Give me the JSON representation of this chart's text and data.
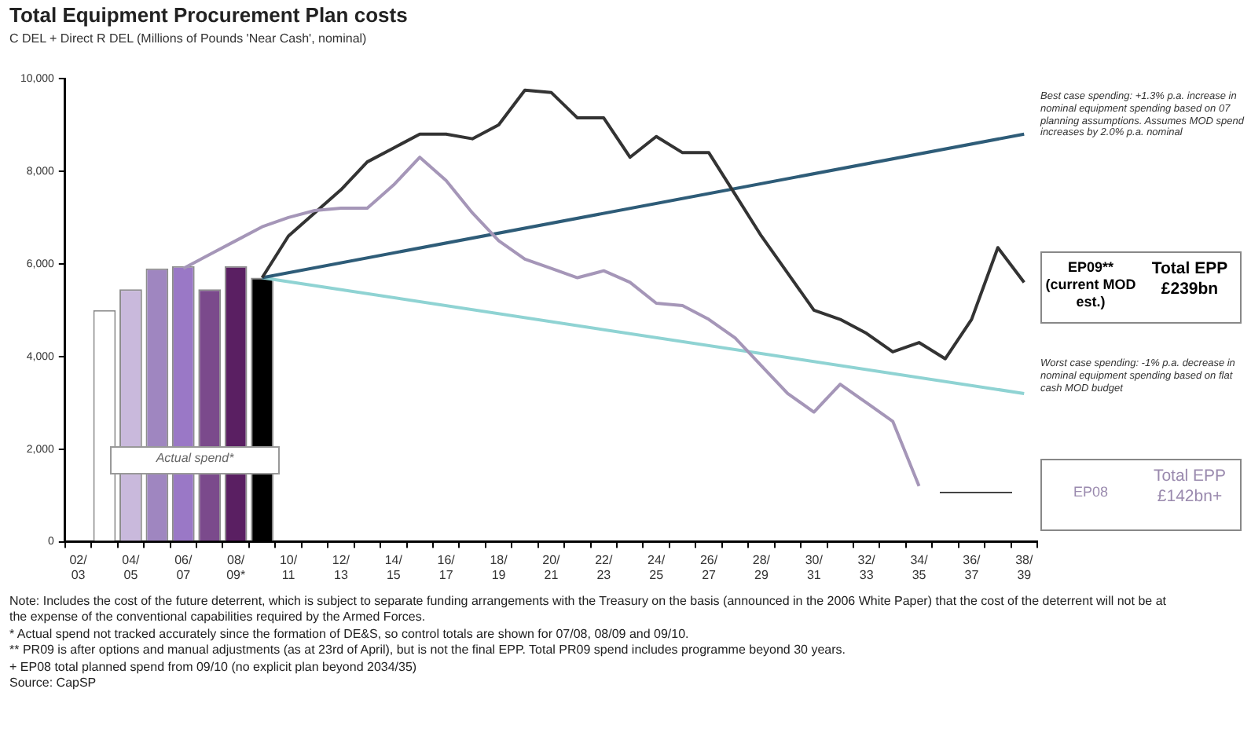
{
  "chart_data": {
    "type": "bar",
    "title": "Total Equipment Procurement Plan costs",
    "subtitle": "C DEL + Direct R DEL (Millions of Pounds 'Near Cash', nominal)",
    "categories": [
      "02/03",
      null,
      "04/05",
      null,
      "06/07",
      null,
      "08/09*",
      null,
      "10/11",
      null,
      "12/13",
      null,
      "14/15",
      null,
      "16/17",
      null,
      "18/19",
      null,
      "20/21",
      null,
      "22/23",
      null,
      "24/25",
      null,
      "26/27",
      null,
      "28/29",
      null,
      "30/31",
      null,
      "32/33",
      null,
      "34/35",
      null,
      "36/37",
      null,
      "38/39"
    ],
    "series": [
      {
        "colors": [
          null,
          "#ffffff",
          "#c9b9dc",
          "#9f86c0",
          "#9a78c6",
          "#7b4a8c",
          "#5a1f62",
          "#000000",
          null,
          null,
          null,
          null,
          null,
          null,
          null,
          null,
          null,
          null,
          null,
          null,
          null,
          null,
          null,
          null,
          null,
          null,
          null,
          null,
          null,
          null,
          null,
          null,
          null,
          null,
          null,
          null,
          null
        ],
        "values": [
          null,
          5000,
          5450,
          5900,
          5950,
          5450,
          5950,
          5700,
          null,
          null,
          null,
          null,
          null,
          null,
          null,
          null,
          null,
          null,
          null,
          null,
          null,
          null,
          null,
          null,
          null,
          null,
          null,
          null,
          null,
          null,
          null,
          null,
          null,
          null,
          null,
          null,
          null
        ]
      },
      {
        "type": "line",
        "color": "#a596b8",
        "values": [
          null,
          null,
          null,
          null,
          5900,
          6200,
          6500,
          6800,
          7000,
          7150,
          7200,
          7200,
          7700,
          8300,
          7800,
          7100,
          6500,
          6100,
          5900,
          5700,
          5850,
          5600,
          5150,
          5100,
          4800,
          4400,
          3800,
          3200,
          2800,
          3400,
          3000,
          2600,
          1200,
          null,
          null,
          null,
          null
        ]
      },
      {
        "type": "line",
        "color": "#333333",
        "values": [
          null,
          null,
          null,
          null,
          null,
          null,
          null,
          5700,
          6600,
          7100,
          7600,
          8200,
          8500,
          8800,
          8800,
          8700,
          9000,
          9750,
          9700,
          9150,
          9150,
          8300,
          8750,
          8400,
          8400,
          7500,
          6600,
          5800,
          5000,
          4800,
          4500,
          4100,
          4300,
          3950,
          4800,
          6350,
          5600
        ]
      },
      {
        "type": "line",
        "color": "#2e5c78",
        "values": [
          null,
          null,
          null,
          null,
          null,
          null,
          null,
          5700,
          null,
          null,
          null,
          null,
          null,
          null,
          null,
          null,
          null,
          null,
          null,
          null,
          null,
          null,
          null,
          null,
          null,
          null,
          null,
          null,
          null,
          null,
          null,
          null,
          null,
          null,
          null,
          null,
          8800
        ]
      },
      {
        "type": "line",
        "color": "#8fd3d3",
        "values": [
          null,
          null,
          null,
          null,
          null,
          null,
          null,
          5700,
          null,
          null,
          null,
          null,
          null,
          null,
          null,
          null,
          null,
          null,
          null,
          null,
          null,
          null,
          null,
          null,
          null,
          null,
          null,
          null,
          null,
          null,
          null,
          null,
          null,
          null,
          null,
          null,
          3200
        ]
      }
    ],
    "ylim": [
      0,
      10000
    ],
    "yticks": [
      0,
      {
        "value": 2000,
        "label": "2,000"
      },
      {
        "value": 4000,
        "label": "4,000"
      },
      {
        "value": 6000,
        "label": "6,000"
      },
      {
        "value": 8000,
        "label": "8,000"
      },
      {
        "value": 10000,
        "label": "10,000"
      }
    ],
    "grid": false,
    "legend": false,
    "annotations": [
      "Best case spending: +1.3% p.a. increase in nominal equipment spending based on 07 planning assumptions. Assumes MOD spend increases by 2.0% p.a. nominal",
      "Worst case spending: -1% p.a. decrease in nominal equipment spending based on flat cash MOD budget",
      "EP09** (current MOD est.)",
      "Total EPP £239bn",
      "EP08",
      "Total EPP £142bn+",
      "Actual spend*",
      "Note: Includes the cost of the future deterrent, which is subject to separate funding arrangements with the Treasury on the basis (announced in the 2006 White Paper) that the cost of the deterrent will not be at the expense of the conventional capabilities required by the Armed Forces.",
      "* Actual spend not tracked accurately since the formation of DE&S, so control totals are shown for 07/08, 08/09 and 09/10.",
      "** PR09 is after options and manual adjustments (as at 23rd of April), but is not the final EPP. Total PR09 spend includes programme beyond 30 years.",
      "+ EP08 total planned spend from 09/10 (no explicit plan beyond 2034/35)",
      "Source: CapSP"
    ]
  }
}
